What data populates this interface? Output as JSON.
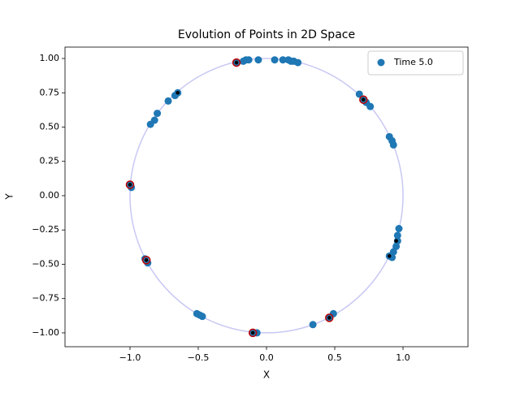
{
  "chart_data": {
    "type": "scatter",
    "title": "Evolution of Points in 2D Space",
    "xlabel": "X",
    "ylabel": "Y",
    "xlim": [
      -1.476,
      1.476
    ],
    "ylim": [
      -1.101,
      1.083
    ],
    "xticks": [
      {
        "value": -1.0,
        "label": "−1.0"
      },
      {
        "value": -0.5,
        "label": "−0.5"
      },
      {
        "value": 0.0,
        "label": "0.0"
      },
      {
        "value": 0.5,
        "label": "0.5"
      },
      {
        "value": 1.0,
        "label": "1.0"
      }
    ],
    "yticks": [
      {
        "value": -1.0,
        "label": "−1.00"
      },
      {
        "value": -0.75,
        "label": "−0.75"
      },
      {
        "value": -0.5,
        "label": "−0.50"
      },
      {
        "value": -0.25,
        "label": "−0.25"
      },
      {
        "value": 0.0,
        "label": "0.00"
      },
      {
        "value": 0.25,
        "label": "0.25"
      },
      {
        "value": 0.5,
        "label": "0.50"
      },
      {
        "value": 0.75,
        "label": "0.75"
      },
      {
        "value": 1.0,
        "label": "1.00"
      }
    ],
    "grid": false,
    "legend": "upper right",
    "reference_circle": {
      "radius": 1,
      "color": "#c8c8f4"
    },
    "series": [
      {
        "name": "Time 5.0",
        "color": "#1f77b4",
        "marker": "dot",
        "x": [
          -0.22,
          -0.17,
          -0.15,
          -0.13,
          -0.06,
          0.06,
          0.12,
          0.16,
          0.18,
          0.2,
          0.23,
          0.68,
          0.71,
          0.73,
          0.76,
          0.9,
          0.92,
          0.93,
          0.97,
          0.96,
          0.96,
          0.95,
          0.93,
          0.92,
          0.9,
          0.49,
          0.46,
          0.34,
          -0.07,
          -0.1,
          -0.51,
          -0.49,
          -0.47,
          -0.89,
          -0.87,
          -1.0,
          -0.99,
          -0.85,
          -0.82,
          -0.8,
          -0.72,
          -0.67,
          -0.65
        ],
        "values": [
          0.97,
          0.98,
          0.99,
          0.99,
          0.99,
          0.99,
          0.99,
          0.99,
          0.98,
          0.98,
          0.97,
          0.74,
          0.7,
          0.68,
          0.65,
          0.43,
          0.4,
          0.37,
          -0.24,
          -0.29,
          -0.33,
          -0.37,
          -0.41,
          -0.45,
          -0.44,
          -0.86,
          -0.89,
          -0.94,
          -1.0,
          -1.0,
          -0.86,
          -0.87,
          -0.88,
          -0.46,
          -0.49,
          0.08,
          0.06,
          0.52,
          0.55,
          0.6,
          0.69,
          0.73,
          0.75
        ]
      },
      {
        "color": "#c00000",
        "marker": "ring",
        "x": [
          -0.22,
          0.71,
          -1.0,
          -0.88,
          -0.1,
          0.46
        ],
        "values": [
          0.97,
          0.7,
          0.08,
          -0.47,
          -1.0,
          -0.89
        ]
      },
      {
        "color": "#000000",
        "marker": "small",
        "x": [
          -0.22,
          0.71,
          -1.0,
          -0.88,
          -0.1,
          0.46,
          -0.65,
          0.95,
          0.9
        ],
        "values": [
          0.97,
          0.7,
          0.08,
          -0.47,
          -1.0,
          -0.89,
          0.75,
          -0.33,
          -0.44
        ]
      }
    ]
  }
}
